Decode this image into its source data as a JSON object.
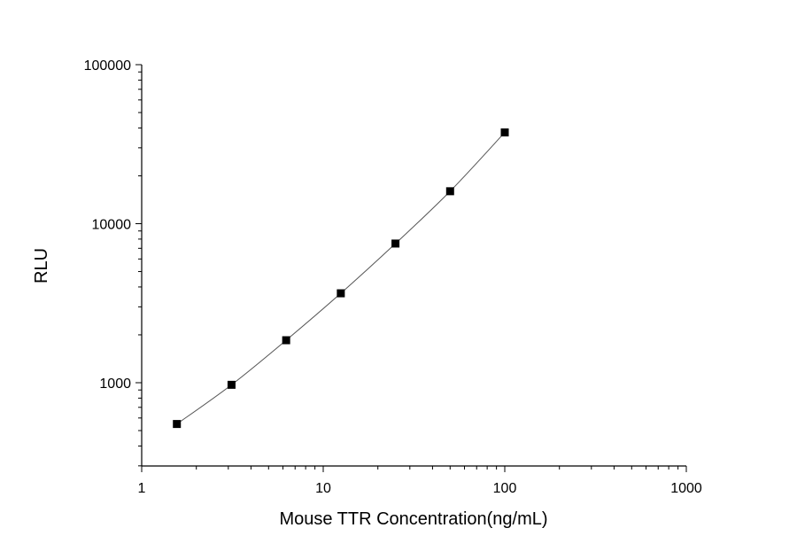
{
  "chart_data": {
    "type": "scatter",
    "title": "",
    "xlabel": "Mouse TTR Concentration(ng/mL)",
    "ylabel": "RLU",
    "x_scale": "log",
    "y_scale": "log",
    "xlim": [
      1,
      1000
    ],
    "ylim": [
      300,
      100000
    ],
    "x_ticks": [
      1,
      10,
      100,
      1000
    ],
    "x_tick_labels": [
      "1",
      "10",
      "100",
      "1000"
    ],
    "y_ticks": [
      1000,
      10000,
      100000
    ],
    "y_tick_labels": [
      "1000",
      "10000",
      "100000"
    ],
    "grid": false,
    "legend": "none",
    "fit_line": true,
    "colors": {
      "marker": "#000000",
      "line": "#555555",
      "axis": "#000000"
    },
    "series": [
      {
        "x": [
          1.5625,
          3.125,
          6.25,
          12.5,
          25,
          50,
          100
        ],
        "y": [
          550,
          970,
          1850,
          3650,
          7500,
          16000,
          37500
        ]
      }
    ]
  }
}
